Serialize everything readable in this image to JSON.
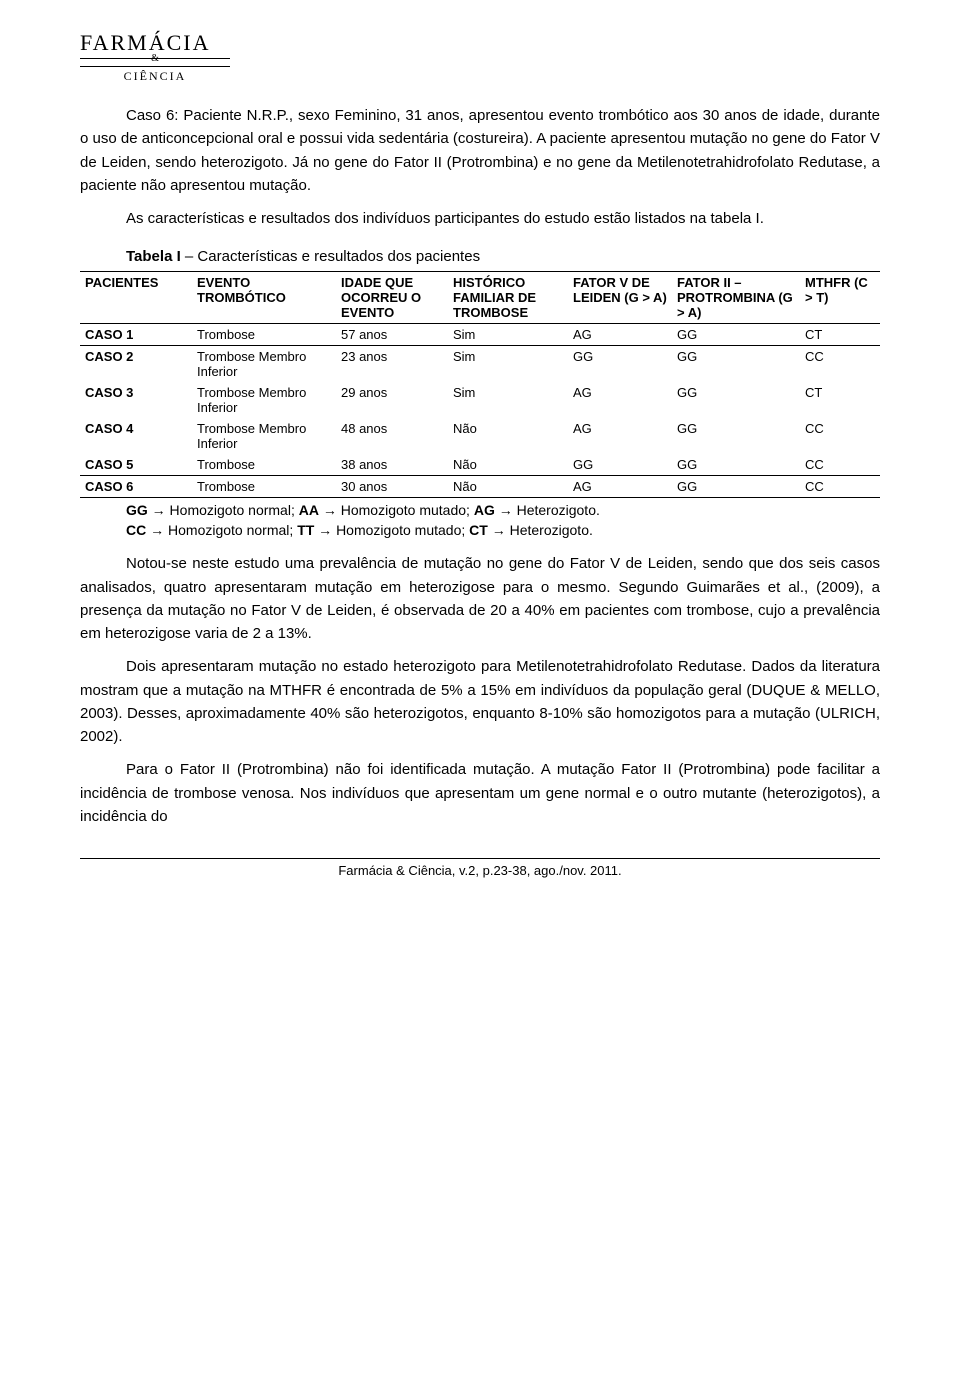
{
  "logo": {
    "top": "FARMÁCIA",
    "amp": "&",
    "bottom": "CIÊNCIA"
  },
  "para1": "Caso 6: Paciente N.R.P., sexo Feminino, 31 anos, apresentou evento trombótico aos 30 anos de idade, durante o uso de anticoncepcional oral e possui vida sedentária (costureira). A paciente apresentou mutação no gene do Fator V de Leiden, sendo heterozigoto. Já no gene do Fator II (Protrombina) e no gene da Metilenotetrahidrofolato Redutase, a paciente não apresentou mutação.",
  "para2": "As características e resultados dos indivíduos participantes do estudo estão listados na tabela I.",
  "table": {
    "caption_label": "Tabela I",
    "caption_rest": " – Características e resultados dos pacientes",
    "columns": [
      "PACIENTES",
      "EVENTO TROMBÓTICO",
      "IDADE QUE OCORREU O EVENTO",
      "HISTÓRICO FAMILIAR DE TROMBOSE",
      "FATOR V DE LEIDEN (G > A)",
      "FATOR II – PROTROMBINA (G > A)",
      "MTHFR (C > T)"
    ],
    "rows": [
      {
        "cells": [
          "CASO 1",
          "Trombose",
          "57 anos",
          "Sim",
          "AG",
          "GG",
          "CT"
        ],
        "sep": true
      },
      {
        "cells": [
          "CASO 2",
          "Trombose Membro Inferior",
          "23 anos",
          "Sim",
          "GG",
          "GG",
          "CC"
        ],
        "sep": false
      },
      {
        "cells": [
          "CASO 3",
          "Trombose Membro Inferior",
          "29 anos",
          "Sim",
          "AG",
          "GG",
          "CT"
        ],
        "sep": false
      },
      {
        "cells": [
          "CASO 4",
          "Trombose Membro Inferior",
          "48 anos",
          "Não",
          "AG",
          "GG",
          "CC"
        ],
        "sep": false
      },
      {
        "cells": [
          "CASO 5",
          "Trombose",
          "38 anos",
          "Não",
          "GG",
          "GG",
          "CC"
        ],
        "sep": true
      },
      {
        "cells": [
          "CASO 6",
          "Trombose",
          "30 anos",
          "Não",
          "AG",
          "GG",
          "CC"
        ],
        "sep": false,
        "last": true
      }
    ],
    "note1_plain": "GG → Homozigoto normal; AA → Homozigoto mutado; AG → Heterozigoto.",
    "note2_plain": "CC → Homozigoto normal; TT → Homozigoto mutado; CT → Heterozigoto.",
    "note_bold_tokens": [
      "GG",
      "AA",
      "AG",
      "CC",
      "TT",
      "CT"
    ]
  },
  "para3": "Notou-se neste estudo uma prevalência de mutação no gene do Fator V de Leiden, sendo que dos seis casos analisados, quatro apresentaram mutação em heterozigose para o mesmo. Segundo Guimarães et al., (2009), a presença da mutação no Fator V de Leiden, é observada de 20 a 40% em pacientes com trombose, cujo a prevalência em heterozigose varia de 2 a 13%.",
  "para4": "Dois apresentaram mutação no estado heterozigoto para Metilenotetrahidrofolato Redutase. Dados da literatura mostram que a mutação na MTHFR é encontrada de 5% a 15% em indivíduos da população geral (DUQUE & MELLO, 2003). Desses, aproximadamente 40% são heterozigotos, enquanto 8-10% são homozigotos para a mutação (ULRICH, 2002).",
  "para5": "Para o Fator II (Protrombina) não foi identificada mutação. A mutação Fator II (Protrombina) pode facilitar a incidência de trombose venosa. Nos indivíduos que apresentam um gene normal e o outro mutante (heterozigotos), a incidência do",
  "footer": "Farmácia & Ciência, v.2, p.23-38, ago./nov. 2011.",
  "style": {
    "body_font_size_pt": 11,
    "table_font_size_pt": 10,
    "text_color": "#000000",
    "background_color": "#ffffff",
    "rule_color": "#000000",
    "col_widths_pct": [
      14,
      18,
      14,
      15,
      13,
      16,
      10
    ]
  }
}
